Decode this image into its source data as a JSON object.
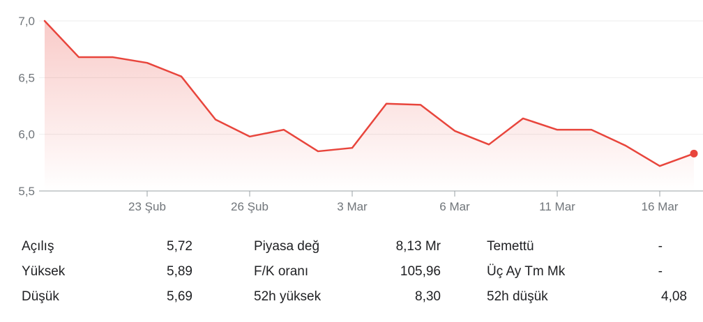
{
  "chart_data": {
    "type": "area",
    "title": "",
    "xlabel": "",
    "ylabel": "",
    "ylim": [
      5.5,
      7.0
    ],
    "yticks": [
      "7,0",
      "6,5",
      "6,0",
      "5,5"
    ],
    "ytick_values": [
      7.0,
      6.5,
      6.0,
      5.5
    ],
    "xticks": [
      "23 Şub",
      "26 Şub",
      "3 Mar",
      "6 Mar",
      "11 Mar",
      "16 Mar"
    ],
    "xtick_index": [
      3,
      6,
      9,
      12,
      15,
      18
    ],
    "series": [
      {
        "values": [
          7.0,
          6.68,
          6.68,
          6.63,
          6.51,
          6.13,
          5.98,
          6.04,
          5.85,
          5.88,
          6.27,
          6.26,
          6.03,
          5.91,
          6.14,
          6.04,
          6.04,
          5.9,
          5.72,
          5.83
        ]
      }
    ],
    "colors": {
      "line": "#e8453c",
      "fill": "#e8453c",
      "grid": "#eeeeee",
      "axis": "#9aa0a6"
    },
    "grid": true,
    "last_point_marker": true
  },
  "stats": [
    {
      "label": "Açılış",
      "value": "5,72"
    },
    {
      "label": "Yüksek",
      "value": "5,89"
    },
    {
      "label": "Düşük",
      "value": "5,69"
    },
    {
      "label": "Piyasa değ",
      "value": "8,13 Mr"
    },
    {
      "label": "F/K oranı",
      "value": "105,96"
    },
    {
      "label": "52h yüksek",
      "value": "8,30"
    },
    {
      "label": "Temettü",
      "value": "-"
    },
    {
      "label": "Üç Ay Tm Mk",
      "value": "-"
    },
    {
      "label": "52h düşük",
      "value": "4,08"
    }
  ]
}
